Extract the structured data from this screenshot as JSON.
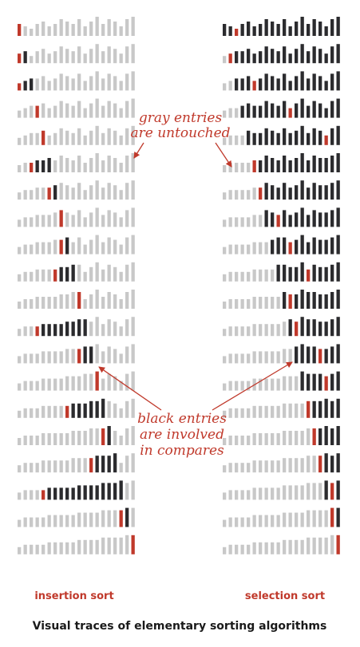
{
  "labels": {
    "left": "insertion sort",
    "right": "selection sort",
    "caption": "Visual traces of elementary sorting algorithms"
  },
  "annotations": {
    "gray": [
      "gray entries",
      "are untouched"
    ],
    "black": [
      "black entries",
      "are involved",
      "in compares"
    ]
  },
  "colors": {
    "gray": "#c8c8c8",
    "black": "#2b2b2e",
    "red": "#c0392b"
  },
  "n": 20,
  "values": [
    5,
    4,
    3,
    5,
    6,
    4,
    5,
    7,
    6,
    5,
    7,
    4,
    6,
    8,
    5,
    7,
    6,
    4,
    7,
    8
  ]
}
